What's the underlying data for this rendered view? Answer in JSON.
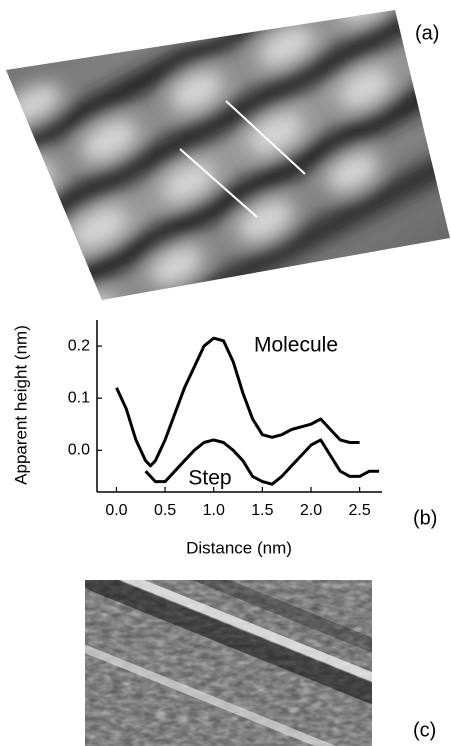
{
  "panels": {
    "a": "(a)",
    "b": "(b)",
    "c": "(c)"
  },
  "chart_data": {
    "type": "line",
    "x_label": "Distance (nm)",
    "y_label": "Apparent height (nm)",
    "xlim": [
      -0.2,
      2.73
    ],
    "ylim": [
      -0.08,
      0.25
    ],
    "xticks": [
      {
        "value": 0,
        "label": "0.0"
      },
      0.5,
      {
        "value": 1,
        "label": "1.0"
      },
      1.5,
      {
        "value": 2,
        "label": "2.0"
      },
      2.5
    ],
    "yticks": [
      {
        "value": 0,
        "label": "0.0"
      },
      0.1,
      0.2
    ],
    "series": [
      {
        "name": "Molecule",
        "color": "#000000",
        "x": [
          0,
          0.1,
          0.2,
          0.3,
          0.35,
          0.4,
          0.5,
          0.6,
          0.7,
          0.8,
          0.9,
          1.0,
          1.1,
          1.2,
          1.3,
          1.4,
          1.5,
          1.6,
          1.7,
          1.8,
          1.9,
          2.0,
          2.1,
          2.2,
          2.3,
          2.4,
          2.5
        ],
        "values": [
          0.12,
          0.08,
          0.02,
          -0.02,
          -0.03,
          -0.02,
          0.02,
          0.07,
          0.12,
          0.16,
          0.2,
          0.215,
          0.21,
          0.17,
          0.11,
          0.06,
          0.03,
          0.025,
          0.03,
          0.04,
          0.045,
          0.05,
          0.06,
          0.04,
          0.02,
          0.015,
          0.015
        ]
      },
      {
        "name": "Step",
        "color": "#000000",
        "x": [
          0.3,
          0.4,
          0.5,
          0.6,
          0.7,
          0.8,
          0.9,
          1.0,
          1.1,
          1.2,
          1.3,
          1.4,
          1.5,
          1.6,
          1.7,
          1.8,
          1.9,
          2.0,
          2.1,
          2.2,
          2.3,
          2.4,
          2.5,
          2.6,
          2.7
        ],
        "values": [
          -0.04,
          -0.06,
          -0.06,
          -0.04,
          -0.02,
          0.0,
          0.015,
          0.02,
          0.015,
          0.0,
          -0.02,
          -0.05,
          -0.06,
          -0.065,
          -0.05,
          -0.03,
          -0.01,
          0.01,
          0.02,
          -0.01,
          -0.04,
          -0.05,
          -0.05,
          -0.04,
          -0.04
        ]
      }
    ]
  }
}
